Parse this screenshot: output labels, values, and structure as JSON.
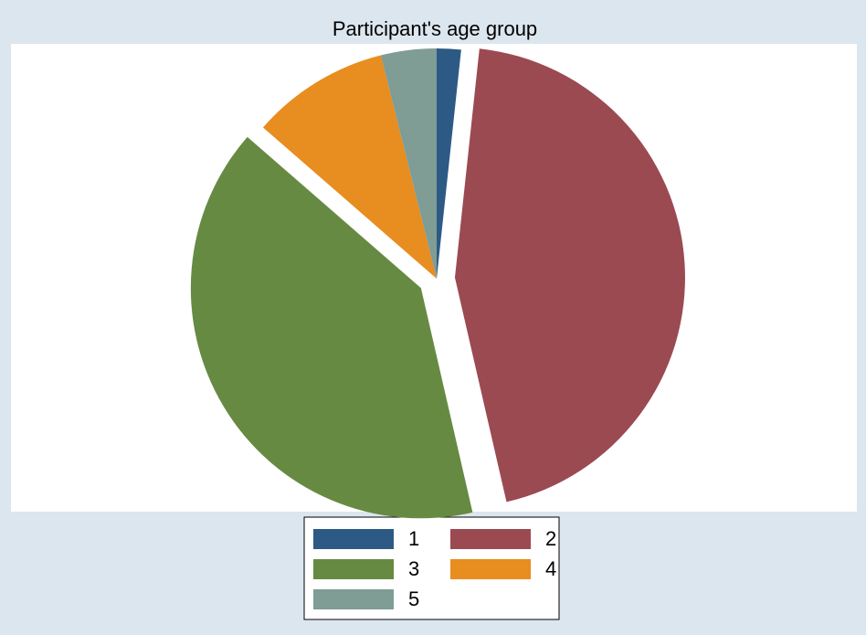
{
  "chart_data": {
    "type": "pie",
    "title": "Participant's age group",
    "categories": [
      "1",
      "2",
      "3",
      "4",
      "5"
    ],
    "values": [
      1.7,
      44.7,
      40.0,
      9.7,
      3.9
    ],
    "colors": [
      "#2c5a85",
      "#9b4a52",
      "#668a42",
      "#e88d1f",
      "#7f9c95"
    ],
    "explode": [
      false,
      true,
      true,
      false,
      false
    ]
  }
}
